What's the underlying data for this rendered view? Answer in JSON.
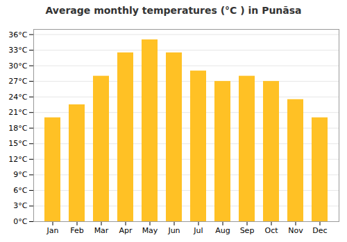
{
  "chart_data": {
    "type": "bar",
    "title": "Average monthly temperatures (°C ) in Punāsa",
    "categories": [
      "Jan",
      "Feb",
      "Mar",
      "Apr",
      "May",
      "Jun",
      "Jul",
      "Aug",
      "Sep",
      "Oct",
      "Nov",
      "Dec"
    ],
    "values": [
      20,
      22.5,
      28,
      32.5,
      35,
      32.5,
      29,
      27,
      28,
      27,
      23.5,
      20
    ],
    "color": "#FFC125",
    "ylim": [
      0,
      37
    ],
    "yticks": [
      {
        "value": 0,
        "label": "0°C"
      },
      {
        "value": 3,
        "label": "3°C"
      },
      {
        "value": 6,
        "label": "6°C"
      },
      {
        "value": 9,
        "label": "9°C"
      },
      {
        "value": 12,
        "label": "12°C"
      },
      {
        "value": 15,
        "label": "15°C"
      },
      {
        "value": 18,
        "label": "18°C"
      },
      {
        "value": 21,
        "label": "21°C"
      },
      {
        "value": 24,
        "label": "24°C"
      },
      {
        "value": 27,
        "label": "27°C"
      },
      {
        "value": 30,
        "label": "30°C"
      },
      {
        "value": 33,
        "label": "33°C"
      },
      {
        "value": 36,
        "label": "36°C"
      }
    ],
    "grid": true
  }
}
